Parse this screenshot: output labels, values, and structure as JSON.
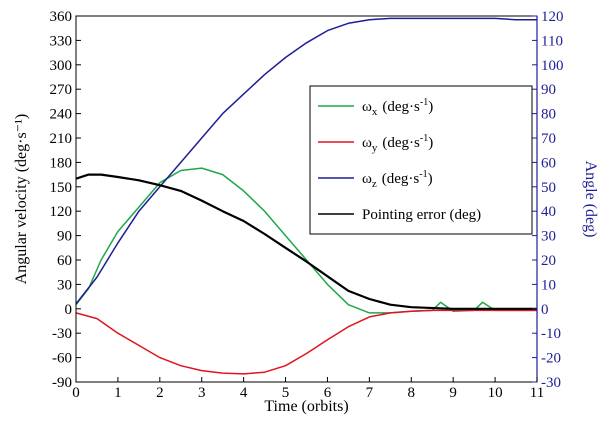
{
  "chart_data": {
    "type": "line",
    "title": "",
    "xlabel": "Time (orbits)",
    "ylabel_left": "Angular velocity (deg·s⁻¹)",
    "ylabel_right": "Angle (deg)",
    "xlim": [
      0,
      11
    ],
    "ylim_left": [
      -90,
      360
    ],
    "ylim_right": [
      -30,
      120
    ],
    "x_ticks": [
      "0",
      "1",
      "2",
      "3",
      "4",
      "5",
      "6",
      "7",
      "8",
      "9",
      "10",
      "11"
    ],
    "y_left_ticks": [
      "-90",
      "-60",
      "-30",
      "0",
      "30",
      "60",
      "90",
      "120",
      "150",
      "180",
      "210",
      "240",
      "270",
      "300",
      "330",
      "360"
    ],
    "y_right_ticks": [
      "-30",
      "-20",
      "-10",
      "0",
      "10",
      "20",
      "30",
      "40",
      "50",
      "60",
      "70",
      "80",
      "90",
      "100",
      "110",
      "120"
    ],
    "grid": false,
    "legend_position": "top-right",
    "colors": {
      "wx": "#1fa84a",
      "wy": "#e0141e",
      "wz": "#1e1e96",
      "err": "#000000",
      "right_axis": "#1e1e96"
    },
    "series": [
      {
        "name": "ωx (deg·s⁻¹)",
        "legend_symbol": "ω",
        "legend_sub": "x",
        "legend_unit": "(deg·s",
        "legend_sup": "-1",
        "legend_close": ")",
        "axis": "left",
        "color": "#1fa84a",
        "x": [
          0,
          0.3,
          0.6,
          1.0,
          1.5,
          2.0,
          2.5,
          3.0,
          3.5,
          4.0,
          4.5,
          5.0,
          5.5,
          6.0,
          6.5,
          7.0,
          7.5,
          8.0,
          8.5,
          8.7,
          9.0,
          9.5,
          9.7,
          10.0,
          10.5,
          11.0
        ],
        "y": [
          5,
          25,
          60,
          95,
          125,
          155,
          170,
          173,
          165,
          145,
          120,
          90,
          60,
          30,
          5,
          -5,
          -5,
          -3,
          -2,
          8,
          -3,
          -2,
          8,
          -2,
          -2,
          -2
        ]
      },
      {
        "name": "ωy (deg·s⁻¹)",
        "legend_symbol": "ω",
        "legend_sub": "y",
        "legend_unit": "(deg·s",
        "legend_sup": "-1",
        "legend_close": ")",
        "axis": "left",
        "color": "#e0141e",
        "x": [
          0,
          0.5,
          1.0,
          1.5,
          2.0,
          2.5,
          3.0,
          3.5,
          4.0,
          4.5,
          5.0,
          5.5,
          6.0,
          6.5,
          7.0,
          7.5,
          8.0,
          8.5,
          9.0,
          10.0,
          11.0
        ],
        "y": [
          -5,
          -12,
          -30,
          -45,
          -60,
          -70,
          -76,
          -79,
          -80,
          -78,
          -70,
          -55,
          -38,
          -22,
          -10,
          -5,
          -3,
          -2,
          -2,
          -2,
          -2
        ]
      },
      {
        "name": "ωz (deg·s⁻¹)",
        "legend_symbol": "ω",
        "legend_sub": "z",
        "legend_unit": "(deg·s",
        "legend_sup": "-1",
        "legend_close": ")",
        "axis": "right",
        "color": "#1e1e96",
        "x": [
          0,
          0.5,
          1.0,
          1.5,
          2.0,
          2.5,
          3.0,
          3.5,
          4.0,
          4.5,
          5.0,
          5.5,
          6.0,
          6.5,
          7.0,
          7.5,
          8.0,
          9.0,
          10.0,
          10.5,
          11.0
        ],
        "y": [
          2,
          13,
          27,
          40,
          50,
          60,
          70,
          80,
          88,
          96,
          103,
          109,
          114,
          117,
          118.5,
          119,
          119,
          119,
          119,
          118.5,
          118.5
        ]
      },
      {
        "name": "Pointing error (deg)",
        "legend_symbol": "",
        "legend_sub": "",
        "legend_unit": "Pointing error (deg)",
        "legend_sup": "",
        "legend_close": "",
        "axis": "left",
        "color": "#000000",
        "x": [
          0,
          0.3,
          0.6,
          1.0,
          1.5,
          2.0,
          2.5,
          3.0,
          3.5,
          4.0,
          4.5,
          5.0,
          5.5,
          6.0,
          6.5,
          7.0,
          7.5,
          8.0,
          9.0,
          10.0,
          11.0
        ],
        "y": [
          160,
          165,
          165,
          162,
          158,
          152,
          145,
          133,
          120,
          108,
          92,
          75,
          58,
          40,
          22,
          12,
          5,
          2,
          0,
          0,
          0
        ]
      }
    ]
  }
}
